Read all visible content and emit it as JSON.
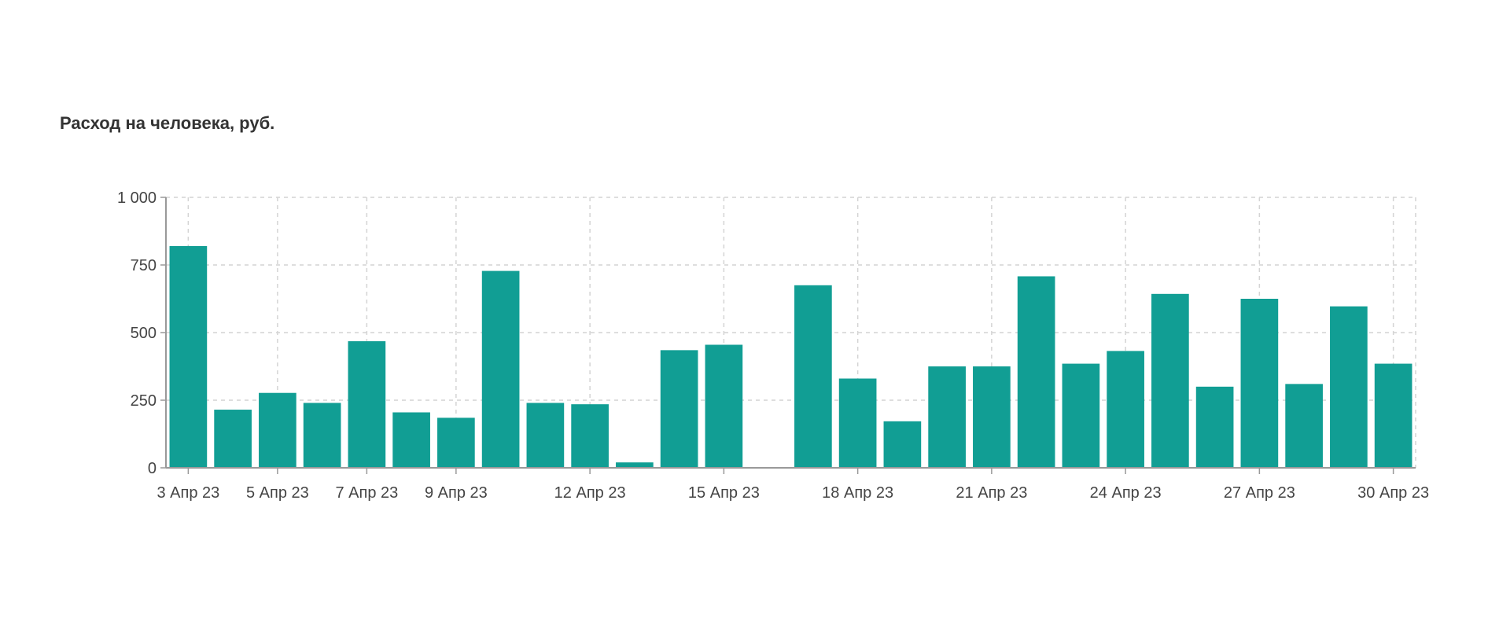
{
  "title": "Расход на человека, руб.",
  "chart_data": {
    "type": "bar",
    "title": "Расход на человека, руб.",
    "xlabel": "",
    "ylabel": "",
    "x_axis": "dates",
    "x": [
      "2023-04-03",
      "2023-04-04",
      "2023-04-05",
      "2023-04-06",
      "2023-04-07",
      "2023-04-08",
      "2023-04-09",
      "2023-04-10",
      "2023-04-11",
      "2023-04-12",
      "2023-04-13",
      "2023-04-14",
      "2023-04-15",
      "2023-04-16",
      "2023-04-17",
      "2023-04-18",
      "2023-04-19",
      "2023-04-20",
      "2023-04-21",
      "2023-04-22",
      "2023-04-23",
      "2023-04-24",
      "2023-04-25",
      "2023-04-26",
      "2023-04-27",
      "2023-04-28",
      "2023-04-29",
      "2023-04-30"
    ],
    "values": [
      820,
      215,
      277,
      240,
      468,
      205,
      185,
      728,
      240,
      235,
      20,
      435,
      455,
      0,
      675,
      330,
      172,
      375,
      375,
      708,
      385,
      432,
      643,
      300,
      625,
      310,
      597,
      385
    ],
    "ylim": [
      0,
      1000
    ],
    "yticks": [
      {
        "value": 0,
        "label": "0"
      },
      {
        "value": 250,
        "label": "250"
      },
      {
        "value": 500,
        "label": "500"
      },
      {
        "value": 750,
        "label": "750"
      },
      {
        "value": 1000,
        "label": "1 000"
      }
    ],
    "xticks": [
      {
        "date": "2023-04-03",
        "label": "3 Апр 23"
      },
      {
        "date": "2023-04-05",
        "label": "5 Апр 23"
      },
      {
        "date": "2023-04-07",
        "label": "7 Апр 23"
      },
      {
        "date": "2023-04-09",
        "label": "9 Апр 23"
      },
      {
        "date": "2023-04-12",
        "label": "12 Апр 23"
      },
      {
        "date": "2023-04-15",
        "label": "15 Апр 23"
      },
      {
        "date": "2023-04-18",
        "label": "18 Апр 23"
      },
      {
        "date": "2023-04-21",
        "label": "21 Апр 23"
      },
      {
        "date": "2023-04-24",
        "label": "24 Апр 23"
      },
      {
        "date": "2023-04-27",
        "label": "27 Апр 23"
      },
      {
        "date": "2023-04-30",
        "label": "30 Апр 23"
      }
    ],
    "grid": true,
    "legend": "none",
    "bar_color": "#119e94"
  }
}
